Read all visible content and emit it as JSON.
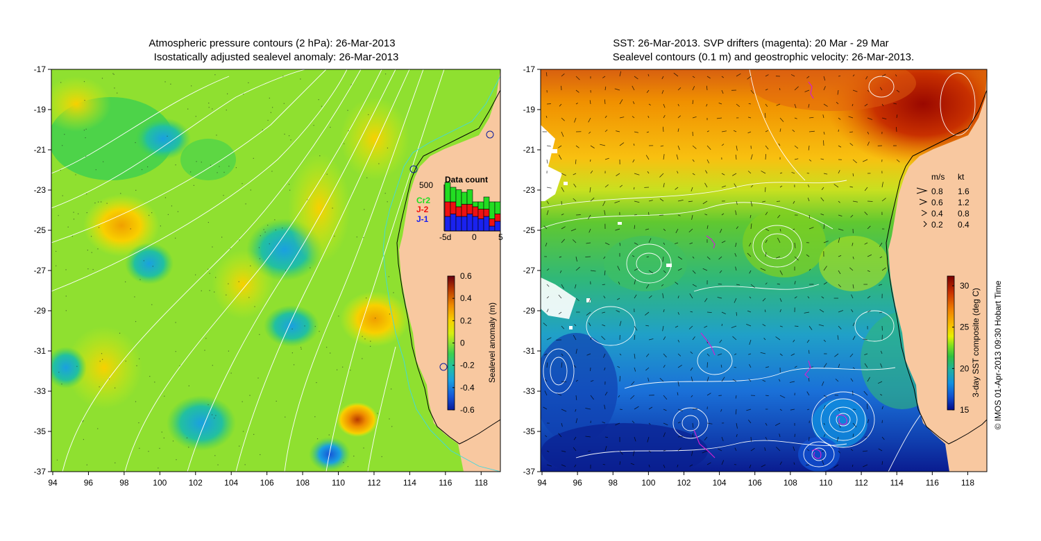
{
  "left_panel": {
    "title_line1": "Atmospheric pressure contours (2 hPa): 26-Mar-2013",
    "title_line2": "Isostatically adjusted sealevel anomaly: 26-Mar-2013",
    "x_ticks": [
      "94",
      "96",
      "98",
      "100",
      "102",
      "104",
      "106",
      "108",
      "110",
      "112",
      "114",
      "116",
      "118"
    ],
    "y_ticks": [
      "-17",
      "-19",
      "-21",
      "-23",
      "-25",
      "-27",
      "-29",
      "-31",
      "-33",
      "-35",
      "-37"
    ],
    "colorbar": {
      "label": "Sealevel anomaly (m)",
      "ticks": [
        "0.6",
        "0.4",
        "0.2",
        "0",
        "-0.2",
        "-0.4",
        "-0.6"
      ],
      "colors": [
        "#6a0010",
        "#b83a00",
        "#ef8c00",
        "#f8d000",
        "#d6ee10",
        "#8fe030",
        "#3cd050",
        "#22c0a0",
        "#1aa0e0",
        "#1555d8",
        "#0a1c9a"
      ]
    },
    "data_count": {
      "title": "Data count",
      "y_label": "500",
      "series_labels": [
        "Cr2",
        "J-2",
        "J-1"
      ],
      "series_colors": [
        "#22dd22",
        "#ee1111",
        "#1a22ee"
      ],
      "x_ticks": [
        "-5d",
        "0",
        "5"
      ],
      "bars": [
        {
          "j1": 0.3,
          "j2": 0.3,
          "cr2": 0.4
        },
        {
          "j1": 0.35,
          "j2": 0.25,
          "cr2": 0.3
        },
        {
          "j1": 0.3,
          "j2": 0.2,
          "cr2": 0.35
        },
        {
          "j1": 0.3,
          "j2": 0.25,
          "cr2": 0.25
        },
        {
          "j1": 0.35,
          "j2": 0.2,
          "cr2": 0.3
        },
        {
          "j1": 0.3,
          "j2": 0.2,
          "cr2": 0.1
        },
        {
          "j1": 0.25,
          "j2": 0.2,
          "cr2": 0.15
        },
        {
          "j1": 0.3,
          "j2": 0.15,
          "cr2": 0.25
        },
        {
          "j1": 0.1,
          "j2": 0.15,
          "cr2": 0.35
        },
        {
          "j1": 0.2,
          "j2": 0.15,
          "cr2": 0.25
        }
      ]
    }
  },
  "right_panel": {
    "title_line1": "SST: 26-Mar-2013. SVP drifters (magenta): 20 Mar - 29 Mar",
    "title_line2": "Sealevel contours (0.1 m) and geostrophic velocity: 26-Mar-2013.",
    "x_ticks": [
      "94",
      "96",
      "98",
      "100",
      "102",
      "104",
      "106",
      "108",
      "110",
      "112",
      "114",
      "116",
      "118"
    ],
    "y_ticks": [
      "-17",
      "-19",
      "-21",
      "-23",
      "-25",
      "-27",
      "-29",
      "-31",
      "-33",
      "-35",
      "-37"
    ],
    "colorbar": {
      "label": "3-day SST composite (deg C)",
      "ticks": [
        "30",
        "25",
        "20",
        "15"
      ],
      "colors": [
        "#7a0000",
        "#c83000",
        "#f08000",
        "#f8c000",
        "#e8f000",
        "#80e020",
        "#30c040",
        "#20b0a0",
        "#1090e0",
        "#1050d0",
        "#000a8a"
      ]
    },
    "velocity_legend": {
      "header_ms": "m/s",
      "header_kt": "kt",
      "rows": [
        {
          "ms": "0.8",
          "kt": "1.6"
        },
        {
          "ms": "0.6",
          "kt": "1.2"
        },
        {
          "ms": "0.4",
          "kt": "0.8"
        },
        {
          "ms": "0.2",
          "kt": "0.4"
        }
      ]
    }
  },
  "credit": "© IMOS 01-Apr-2013 09:30 Hobart Time",
  "colors": {
    "land": "#f8c8a0",
    "coast": "#000000",
    "isobath": "#40d8e0",
    "contour": "#ffffff",
    "drifter": "#d020d0"
  }
}
